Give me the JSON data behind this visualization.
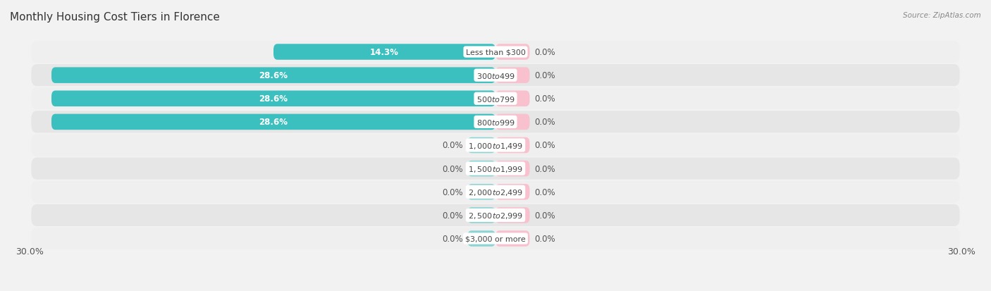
{
  "title": "Monthly Housing Cost Tiers in Florence",
  "source": "Source: ZipAtlas.com",
  "categories": [
    "Less than $300",
    "$300 to $499",
    "$500 to $799",
    "$800 to $999",
    "$1,000 to $1,499",
    "$1,500 to $1,999",
    "$2,000 to $2,499",
    "$2,500 to $2,999",
    "$3,000 or more"
  ],
  "owner_values": [
    14.3,
    28.6,
    28.6,
    28.6,
    0.0,
    0.0,
    0.0,
    0.0,
    0.0
  ],
  "renter_values": [
    0.0,
    0.0,
    0.0,
    0.0,
    0.0,
    0.0,
    0.0,
    0.0,
    0.0
  ],
  "owner_color": "#3BBFBF",
  "renter_color": "#F4A0B5",
  "owner_color_zero": "#8ED4D4",
  "renter_color_zero": "#F9C0CE",
  "row_bg_odd": "#EFEFEF",
  "row_bg_even": "#E6E6E6",
  "max_val": 30.0,
  "stub_owner": 1.8,
  "stub_renter": 2.2,
  "bar_height": 0.68,
  "title_fontsize": 11,
  "label_fontsize": 8.5,
  "tick_fontsize": 9,
  "cat_fontsize": 8,
  "source_fontsize": 7.5
}
